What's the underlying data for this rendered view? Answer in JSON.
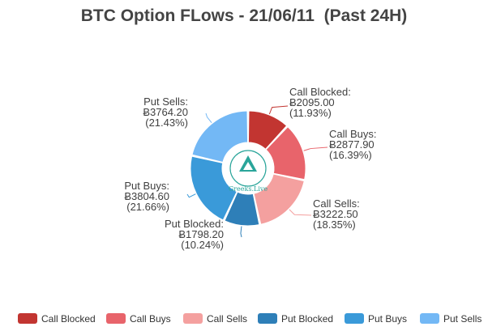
{
  "chart_data": {
    "type": "pie",
    "title": "BTC Option FLows - 21/06/11  (Past 24H)",
    "currency_symbol": "Ƀ",
    "donut": true,
    "slices": [
      {
        "name": "Call Blocked",
        "value": 2095.0,
        "value_text": "Ƀ2095.00",
        "percent_text": "(11.93%)",
        "color": "#c23531"
      },
      {
        "name": "Call Buys",
        "value": 2877.9,
        "value_text": "Ƀ2877.90",
        "percent_text": "(16.39%)",
        "color": "#e8646b"
      },
      {
        "name": "Call Sells",
        "value": 3222.5,
        "value_text": "Ƀ3222.50",
        "percent_text": "(18.35%)",
        "color": "#f4a09f"
      },
      {
        "name": "Put Blocked",
        "value": 1798.2,
        "value_text": "Ƀ1798.20",
        "percent_text": "(10.24%)",
        "color": "#2e7fb8"
      },
      {
        "name": "Put Buys",
        "value": 3804.6,
        "value_text": "Ƀ3804.60",
        "percent_text": "(21.66%)",
        "color": "#3a9ad9"
      },
      {
        "name": "Put Sells",
        "value": 3764.2,
        "value_text": "Ƀ3764.20",
        "percent_text": "(21.43%)",
        "color": "#73b8f5"
      }
    ],
    "legend_position": "bottom"
  },
  "logo": {
    "text": "Greeks.Live",
    "color": "#2aa59a"
  }
}
